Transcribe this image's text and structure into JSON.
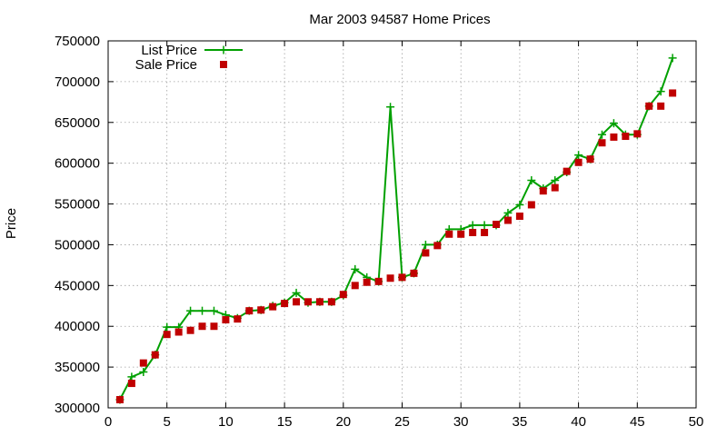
{
  "chart_data": {
    "type": "line",
    "title": "Mar 2003 94587 Home Prices",
    "xlabel": "",
    "ylabel": "Price",
    "xlim": [
      0,
      50
    ],
    "ylim": [
      300000,
      750000
    ],
    "xticks": [
      0,
      5,
      10,
      15,
      20,
      25,
      30,
      35,
      40,
      45,
      50
    ],
    "yticks": [
      300000,
      350000,
      400000,
      450000,
      500000,
      550000,
      600000,
      650000,
      700000,
      750000
    ],
    "grid": true,
    "legend_position": "top-left",
    "x": [
      1,
      2,
      3,
      4,
      5,
      6,
      7,
      8,
      9,
      10,
      11,
      12,
      13,
      14,
      15,
      16,
      17,
      18,
      19,
      20,
      21,
      22,
      23,
      24,
      25,
      26,
      27,
      28,
      29,
      30,
      31,
      32,
      33,
      34,
      35,
      36,
      37,
      38,
      39,
      40,
      41,
      42,
      43,
      44,
      45,
      46,
      47,
      48
    ],
    "series": [
      {
        "name": "List Price",
        "style": "linespoints",
        "marker": "plus",
        "color": "#00a000",
        "values": [
          310000,
          338000,
          344000,
          365000,
          399000,
          399000,
          419000,
          419000,
          419000,
          414000,
          410000,
          419000,
          420000,
          425000,
          429000,
          441000,
          429000,
          430000,
          430000,
          438000,
          470000,
          460000,
          455000,
          669000,
          460000,
          465000,
          500000,
          500000,
          519000,
          519000,
          524000,
          524000,
          524000,
          539000,
          549000,
          579000,
          569000,
          579000,
          589000,
          610000,
          605000,
          635000,
          649000,
          635000,
          635000,
          670000,
          688000,
          729000
        ]
      },
      {
        "name": "Sale Price",
        "style": "points",
        "marker": "square",
        "color": "#c00000",
        "values": [
          310000,
          330000,
          355000,
          365000,
          390000,
          393000,
          395000,
          400000,
          400000,
          408000,
          409000,
          419000,
          420000,
          424000,
          428000,
          430000,
          430000,
          430000,
          430000,
          439000,
          450000,
          454000,
          455000,
          459000,
          460000,
          465000,
          490000,
          499000,
          513000,
          513000,
          515000,
          515000,
          525000,
          530000,
          535000,
          549000,
          566000,
          570000,
          590000,
          601000,
          605000,
          625000,
          632000,
          633000,
          636000,
          670000,
          670000,
          686000
        ]
      }
    ]
  }
}
